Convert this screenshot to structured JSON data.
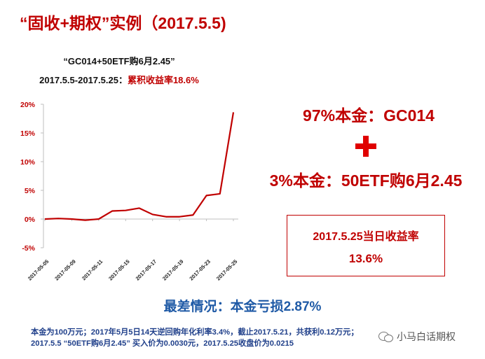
{
  "slide": {
    "title": "“固收+期权”实例（2017.5.5)"
  },
  "chart_data": {
    "type": "line",
    "title": "“GC014+50ETF购6月2.45”",
    "subtitle_period": "2017.5.5-2017.5.25：",
    "subtitle_highlight": "累积收益率18.6%",
    "xlabel": "",
    "ylabel": "",
    "x_tick_labels": [
      "2017-05-05",
      "2017-05-09",
      "2017-05-11",
      "2017-05-15",
      "2017-05-17",
      "2017-05-19",
      "2017-05-23",
      "2017-05-25"
    ],
    "y_tick_labels": [
      "20%",
      "15%",
      "10%",
      "5%",
      "0%",
      "-5%"
    ],
    "ylim": [
      -5,
      20
    ],
    "y_ticks": [
      20,
      15,
      10,
      5,
      0,
      -5
    ],
    "grid": false,
    "legend": "none",
    "line_color": "#c00000",
    "series": [
      {
        "x": [
          "2017-05-05",
          "2017-05-08",
          "2017-05-09",
          "2017-05-10",
          "2017-05-11",
          "2017-05-12",
          "2017-05-15",
          "2017-05-16",
          "2017-05-17",
          "2017-05-18",
          "2017-05-19",
          "2017-05-22",
          "2017-05-23",
          "2017-05-24",
          "2017-05-25"
        ],
        "values": [
          0.0,
          0.1,
          0.0,
          -0.2,
          0.0,
          1.4,
          1.5,
          1.9,
          0.8,
          0.4,
          0.4,
          0.7,
          4.1,
          4.4,
          18.6
        ]
      }
    ]
  },
  "allocation": {
    "principal_gc": "97%本金：GC014",
    "principal_etf": "3%本金：50ETF购6月2.45",
    "plus_icon": "plus-icon",
    "plus_color": "#e00000"
  },
  "return_box": {
    "line1": "2017.5.25当日收益率",
    "line2": "13.6%"
  },
  "worst_case": "最差情况：本金亏损2.87%",
  "notes": {
    "line1": "本金为100万元；2017年5月5日14天逆回购年化利率3.4%，截止2017.5.21，共获利0.12万元；",
    "line2": "2017.5.5 “50ETF购6月2.45” 买入价为0.0030元，2017.5.25收盘价为0.0215"
  },
  "watermark": {
    "icon": "wechat-icon",
    "text": "小马白话期权"
  },
  "colors": {
    "accent_red": "#c00000",
    "accent_blue": "#1f5aa6",
    "note_blue": "#1f3f8a"
  }
}
